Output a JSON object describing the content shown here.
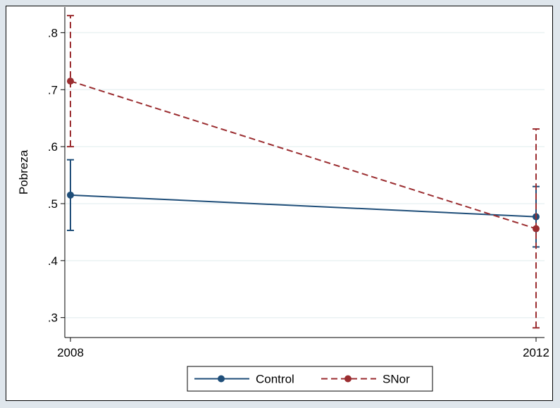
{
  "chart_data": {
    "type": "line",
    "title": "",
    "xlabel": "",
    "ylabel": "Pobreza",
    "x": [
      2008,
      2012
    ],
    "x_tick_labels": [
      "2008",
      "2012"
    ],
    "y_ticks": [
      0.3,
      0.4,
      0.5,
      0.6,
      0.7,
      0.8
    ],
    "y_tick_labels": [
      ".3",
      ".4",
      ".5",
      ".6",
      ".7",
      ".8"
    ],
    "ylim": [
      0.265,
      0.845
    ],
    "grid": true,
    "legend_position": "bottom",
    "series": [
      {
        "name": "Control",
        "style": "solid",
        "color": "#1f4e79",
        "values": [
          0.515,
          0.477
        ],
        "ci_low": [
          0.453,
          0.424
        ],
        "ci_high": [
          0.577,
          0.53
        ]
      },
      {
        "name": "SNor",
        "style": "dashed",
        "color": "#9b2d30",
        "values": [
          0.715,
          0.456
        ],
        "ci_low": [
          0.6,
          0.282
        ],
        "ci_high": [
          0.83,
          0.631
        ]
      }
    ]
  }
}
